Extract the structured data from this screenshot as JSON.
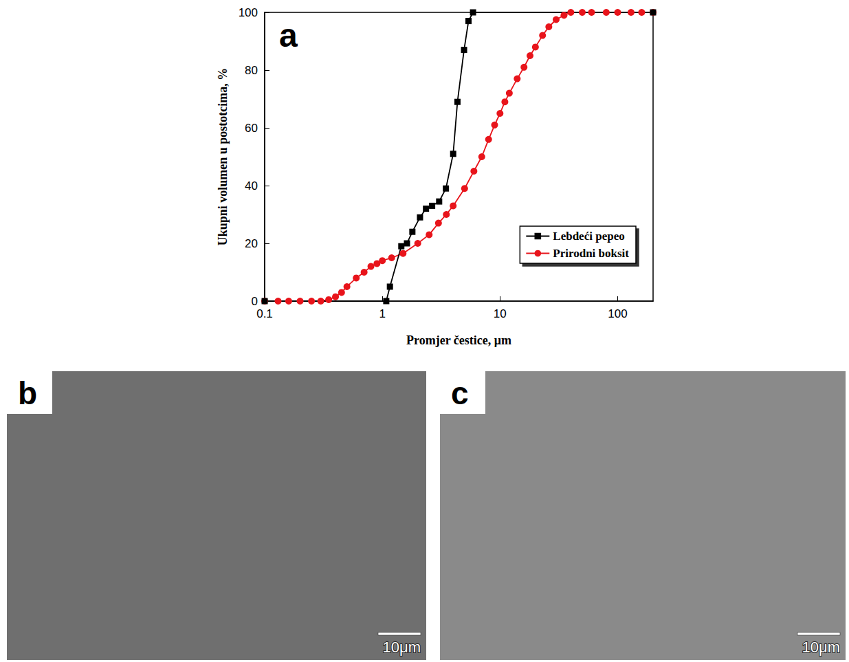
{
  "chart_data": {
    "type": "line",
    "panel": "a",
    "x_label": "Promjer čestice, μm",
    "y_label": "Ukupni volumen u postotcima, %",
    "log": "x",
    "grid": false,
    "legend": "lower right",
    "xlim": [
      0.1,
      200
    ],
    "xticks": [
      0.1,
      1,
      10,
      100
    ],
    "ylim": [
      0,
      100
    ],
    "yticks": [
      0,
      20,
      40,
      60,
      80,
      100
    ],
    "series": [
      {
        "name": "Lebdeći pepeo",
        "color": "#000000",
        "marker": "square",
        "line_style": "solid",
        "x": [
          0.1,
          1.08,
          1.16,
          1.45,
          1.62,
          1.8,
          2.09,
          2.35,
          2.65,
          3.04,
          3.47,
          4.0,
          4.35,
          4.95,
          5.4,
          5.9,
          200
        ],
        "values": [
          0,
          0,
          5,
          19,
          20,
          24,
          29,
          32,
          33,
          34.5,
          39,
          51,
          69,
          87,
          97,
          100,
          100
        ]
      },
      {
        "name": "Prirodni boksit",
        "color": "#e8141b",
        "marker": "circle",
        "line_style": "solid",
        "x": [
          0.1,
          0.13,
          0.16,
          0.2,
          0.25,
          0.3,
          0.35,
          0.4,
          0.45,
          0.5,
          0.6,
          0.7,
          0.8,
          0.9,
          1.0,
          1.2,
          1.5,
          2.0,
          2.5,
          3.0,
          3.5,
          4.0,
          5.0,
          6.0,
          7.0,
          8.0,
          9.0,
          10,
          11,
          12,
          14,
          16,
          18,
          20,
          23,
          26,
          30,
          35,
          40,
          50,
          60,
          80,
          100,
          130,
          160,
          200
        ],
        "values": [
          0,
          0,
          0,
          0,
          0,
          0,
          0.5,
          1.5,
          3,
          5,
          8,
          10,
          12,
          13,
          14,
          15,
          16.5,
          20,
          23,
          27,
          30,
          33,
          39,
          45,
          50,
          56,
          61,
          65,
          69,
          72,
          77,
          81,
          85,
          88,
          92,
          95,
          97.5,
          99,
          100,
          100,
          100,
          100,
          100,
          100,
          100,
          100
        ]
      }
    ]
  },
  "images": [
    {
      "panel": "b",
      "scale_bar": "10μm"
    },
    {
      "panel": "c",
      "scale_bar": "10μm"
    }
  ]
}
